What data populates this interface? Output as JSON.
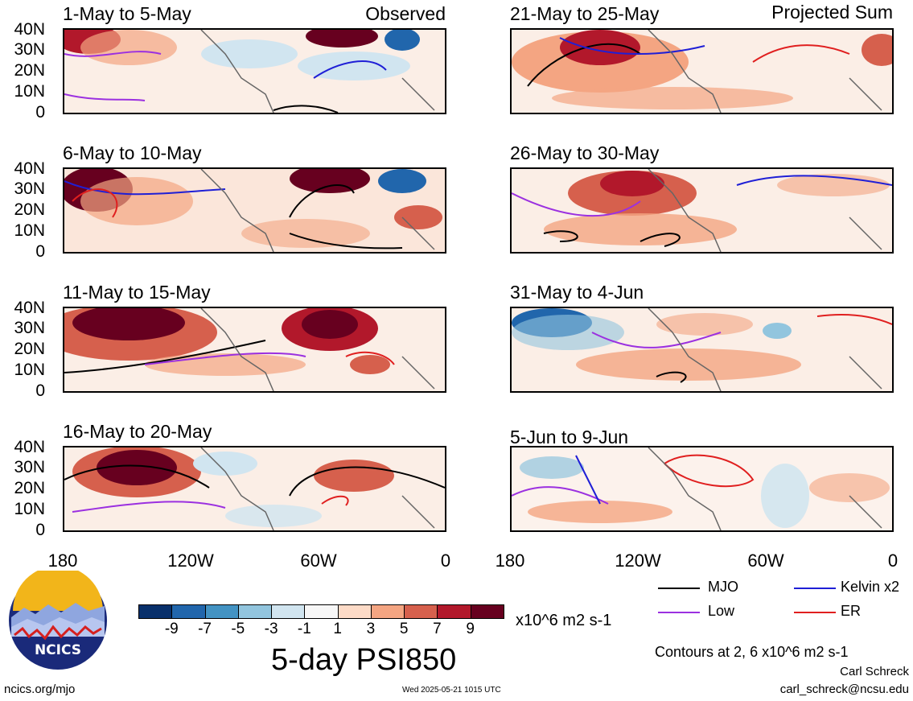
{
  "left_column_header": "Observed",
  "right_column_header": "Projected Sum",
  "panels_left": [
    {
      "title": "1-May to 5-May"
    },
    {
      "title": "6-May to 10-May"
    },
    {
      "title": "11-May to 15-May"
    },
    {
      "title": "16-May to 20-May"
    }
  ],
  "panels_right": [
    {
      "title": "21-May to 25-May"
    },
    {
      "title": "26-May to 30-May"
    },
    {
      "title": "31-May to 4-Jun"
    },
    {
      "title": "5-Jun to 9-Jun"
    }
  ],
  "y_axis_labels": [
    "40N",
    "30N",
    "20N",
    "10N",
    "0"
  ],
  "x_axis_labels": [
    "180",
    "120W",
    "60W",
    "0"
  ],
  "colorbar": {
    "colors": [
      "#08306b",
      "#2166ac",
      "#4393c3",
      "#92c5de",
      "#d1e5f0",
      "#f7f7f7",
      "#fddbc7",
      "#f4a582",
      "#d6604d",
      "#b2182b",
      "#67001f"
    ],
    "tick_labels": [
      "-9",
      "-7",
      "-5",
      "-3",
      "-1",
      "1",
      "3",
      "5",
      "7",
      "9"
    ],
    "units": "x10^6 m2 s-1"
  },
  "main_title": "5-day PSI850",
  "legend": {
    "items": [
      {
        "label": "MJO",
        "color": "#000000"
      },
      {
        "label": "Kelvin x2",
        "color": "#1f1fd6"
      },
      {
        "label": "Low",
        "color": "#9b30e0"
      },
      {
        "label": "ER",
        "color": "#e01f1f"
      }
    ],
    "contour_note": "Contours at 2, 6 x10^6 m2 s-1"
  },
  "author": "Carl Schreck",
  "email": "carl_schreck@ncsu.edu",
  "website": "ncics.org/mjo",
  "timestamp": "Wed 2025-05-21 1015 UTC",
  "logo_text": "NCICS"
}
